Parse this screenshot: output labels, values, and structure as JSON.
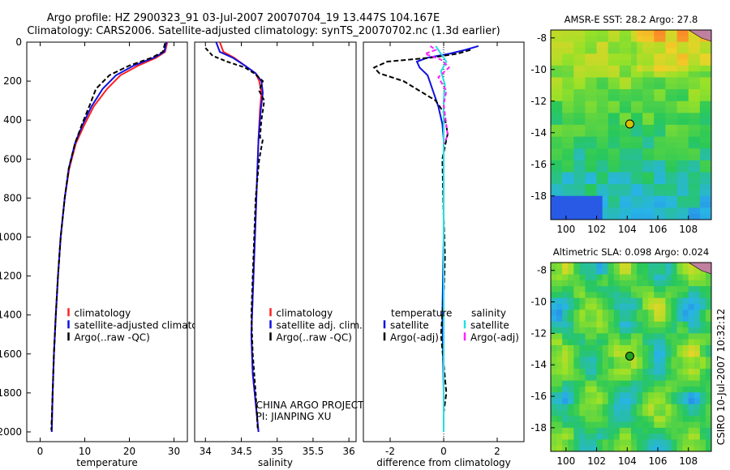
{
  "header": {
    "line1": "Argo profile: HZ 2900323_91 03-Jul-2007 20070704_19 13.447S 104.167E",
    "line2": "Climatology: CARS2006. Satellite-adjusted climatology: synTS_20070702.nc (1.3d earlier)"
  },
  "side_label": "CSIRO 10-Jul-2007 10:32:12",
  "colors": {
    "climatology": "#ff2020",
    "satellite": "#1010e0",
    "argo": "#000000",
    "sat_salinity": "#20e0e0",
    "argo_adj_salinity": "#ff20ff",
    "marker_sst": "#d6c000",
    "marker_sla": "#20a020",
    "land": "#c080a0"
  },
  "chart_data": [
    {
      "type": "line",
      "id": "temperature",
      "xlabel": "temperature",
      "ylabel": "",
      "xlim": [
        -3,
        33
      ],
      "ylim": [
        2050,
        0
      ],
      "xticks": [
        0,
        10,
        20,
        30
      ],
      "xtick_labels": [
        "0",
        "10",
        "20",
        "30"
      ],
      "yticks": [
        0,
        200,
        400,
        600,
        800,
        1000,
        1200,
        1400,
        1600,
        1800,
        2000
      ],
      "ytick_labels": [
        "0",
        "200",
        "400",
        "600",
        "800",
        "1000",
        "1200",
        "1400",
        "1600",
        "1800",
        "2000"
      ],
      "legend": [
        "climatology",
        "satellite-adjusted climatology",
        "Argo(..raw -QC)"
      ],
      "legend_position": "lower-right",
      "series": [
        {
          "name": "climatology",
          "key": "climatology",
          "dash": "",
          "x": [
            28.5,
            28,
            26,
            22,
            18,
            15,
            12,
            10,
            8,
            6.5,
            5.5,
            4.6,
            4,
            3.5,
            3.1,
            2.8,
            2.6
          ],
          "y": [
            0,
            50,
            80,
            120,
            170,
            240,
            330,
            420,
            520,
            650,
            800,
            1000,
            1200,
            1400,
            1600,
            1800,
            2000
          ]
        },
        {
          "name": "satellite-adjusted climatology",
          "key": "satellite",
          "dash": "",
          "x": [
            28.3,
            27.8,
            25.5,
            21,
            17,
            14,
            11.5,
            9.6,
            7.8,
            6.4,
            5.5,
            4.6,
            4,
            3.5,
            3.1,
            2.8,
            2.6
          ],
          "y": [
            0,
            50,
            80,
            120,
            170,
            240,
            330,
            420,
            520,
            650,
            800,
            1000,
            1200,
            1400,
            1600,
            1800,
            2000
          ]
        },
        {
          "name": "Argo(..raw -QC)",
          "key": "argo",
          "dash": "6,3",
          "x": [
            28,
            27.5,
            25,
            20,
            15.5,
            12.5,
            11,
            9.4,
            7.8,
            6.4,
            5.5,
            4.6,
            4,
            3.5,
            3.1,
            2.8,
            2.5
          ],
          "y": [
            5,
            50,
            80,
            120,
            170,
            240,
            330,
            420,
            520,
            650,
            800,
            1000,
            1200,
            1400,
            1600,
            1800,
            1990
          ]
        }
      ]
    },
    {
      "type": "line",
      "id": "salinity",
      "xlabel": "salinity",
      "xlim": [
        33.85,
        36.1
      ],
      "ylim": [
        2050,
        0
      ],
      "xticks": [
        34,
        34.5,
        35,
        35.5,
        36
      ],
      "xtick_labels": [
        "34",
        "34.5",
        "35",
        "35.5",
        "36"
      ],
      "legend": [
        "climatology",
        "satellite adj. clim.",
        "Argo(..raw -QC)"
      ],
      "legend_position": "lower-right",
      "annotation": [
        "CHINA ARGO PROJECT",
        "PI: JIANPING XU"
      ],
      "series": [
        {
          "name": "climatology",
          "key": "climatology",
          "dash": "",
          "x": [
            34.2,
            34.25,
            34.4,
            34.55,
            34.7,
            34.75,
            34.78,
            34.76,
            34.74,
            34.72,
            34.7,
            34.68,
            34.66,
            34.64,
            34.66,
            34.7,
            34.74
          ],
          "y": [
            0,
            50,
            80,
            120,
            160,
            200,
            260,
            350,
            500,
            700,
            900,
            1100,
            1300,
            1500,
            1700,
            1850,
            2000
          ]
        },
        {
          "name": "satellite adj. clim.",
          "key": "satellite",
          "dash": "",
          "x": [
            34.15,
            34.2,
            34.38,
            34.55,
            34.7,
            34.78,
            34.8,
            34.77,
            34.74,
            34.72,
            34.7,
            34.68,
            34.66,
            34.64,
            34.66,
            34.7,
            34.74
          ],
          "y": [
            0,
            50,
            80,
            120,
            160,
            200,
            260,
            350,
            500,
            700,
            900,
            1100,
            1300,
            1500,
            1700,
            1850,
            2000
          ]
        },
        {
          "name": "Argo(..raw -QC)",
          "key": "argo",
          "dash": "5,3",
          "x": [
            34.0,
            34.05,
            34.1,
            34.3,
            34.55,
            34.68,
            34.8,
            34.75,
            34.82,
            34.78,
            34.76,
            34.8,
            34.75,
            34.7,
            34.68,
            34.66,
            34.64,
            34.66,
            34.7,
            34.73
          ],
          "y": [
            30,
            50,
            70,
            100,
            130,
            160,
            200,
            250,
            300,
            400,
            490,
            500,
            600,
            800,
            1000,
            1200,
            1400,
            1600,
            1800,
            1990
          ]
        }
      ]
    },
    {
      "type": "line",
      "id": "difference",
      "xlabel": "difference from climatology",
      "xlim": [
        -3,
        3
      ],
      "ylim": [
        2050,
        0
      ],
      "xticks": [
        -2,
        0,
        2
      ],
      "xtick_labels": [
        "-2",
        "0",
        "2"
      ],
      "legend_groups": [
        {
          "title": "temperature",
          "entries": [
            "satellite",
            "Argo(-adj)"
          ]
        },
        {
          "title": "salinity",
          "entries": [
            "satellite",
            "Argo(-adj)"
          ]
        }
      ],
      "legend_position": "lower-center",
      "series": [
        {
          "name": "temperature satellite",
          "key": "satellite",
          "dash": "",
          "x": [
            1.3,
            0.8,
            0.2,
            -0.6,
            -1.0,
            -0.9,
            -0.6,
            -0.4,
            -0.2,
            -0.05,
            0.0,
            0.0,
            0.0,
            -0.05,
            0.0,
            0.0
          ],
          "y": [
            20,
            40,
            60,
            80,
            100,
            130,
            170,
            250,
            330,
            420,
            500,
            700,
            1000,
            1400,
            1800,
            2000
          ]
        },
        {
          "name": "temperature Argo(-adj)",
          "key": "argo",
          "dash": "6,3",
          "x": [
            1.0,
            0.5,
            -0.5,
            -2.1,
            -2.6,
            -2.4,
            -1.5,
            -0.9,
            -0.3,
            0.0,
            0.15,
            0.1,
            -0.05,
            0.0,
            0.05,
            0.0,
            -0.1,
            0.1,
            0.0,
            0.0
          ],
          "y": [
            40,
            60,
            80,
            100,
            130,
            160,
            200,
            250,
            300,
            360,
            470,
            500,
            600,
            900,
            1100,
            1300,
            1500,
            1800,
            1900,
            2000
          ]
        },
        {
          "name": "salinity satellite",
          "key": "sat_salinity",
          "dash": "",
          "x": [
            -0.3,
            -0.1,
            0.1,
            -0.1,
            0.05,
            0.0,
            0.0,
            0.0,
            0.0,
            0.0,
            0.0
          ],
          "y": [
            20,
            60,
            100,
            150,
            220,
            300,
            500,
            800,
            1200,
            1600,
            2000
          ]
        },
        {
          "name": "salinity Argo(-adj)",
          "key": "argo_adj_salinity",
          "dash": "5,3",
          "x": [
            -0.5,
            -0.3,
            -0.7,
            -0.1,
            0.2,
            -0.2,
            0.1,
            0.0,
            0.15,
            0.0
          ],
          "y": [
            20,
            40,
            60,
            90,
            130,
            180,
            250,
            320,
            480,
            520
          ]
        }
      ]
    },
    {
      "type": "heatmap",
      "id": "sst_map",
      "title": "AMSR-E SST: 28.2 Argo: 27.8",
      "xlim": [
        99,
        109.5
      ],
      "ylim": [
        -19.5,
        -7.5
      ],
      "xticks": [
        100,
        102,
        104,
        106,
        108
      ],
      "xtick_labels": [
        "100",
        "102",
        "104",
        "106",
        "108"
      ],
      "yticks": [
        -8,
        -10,
        -12,
        -14,
        -16,
        -18
      ],
      "ytick_labels": [
        "-8",
        "-10",
        "-12",
        "-14",
        "-16",
        "-18"
      ],
      "marker": {
        "lon": 104.167,
        "lat": -13.447
      }
    },
    {
      "type": "heatmap",
      "id": "sla_map",
      "title": "Altimetric SLA: 0.098 Argo: 0.024",
      "xlim": [
        99,
        109.5
      ],
      "ylim": [
        -19.5,
        -7.5
      ],
      "xticks": [
        100,
        102,
        104,
        106,
        108
      ],
      "xtick_labels": [
        "100",
        "102",
        "104",
        "106",
        "108"
      ],
      "yticks": [
        -8,
        -10,
        -12,
        -14,
        -16,
        -18
      ],
      "ytick_labels": [
        "-8",
        "-10",
        "-12",
        "-14",
        "-16",
        "-18"
      ],
      "marker": {
        "lon": 104.167,
        "lat": -13.447
      }
    }
  ]
}
